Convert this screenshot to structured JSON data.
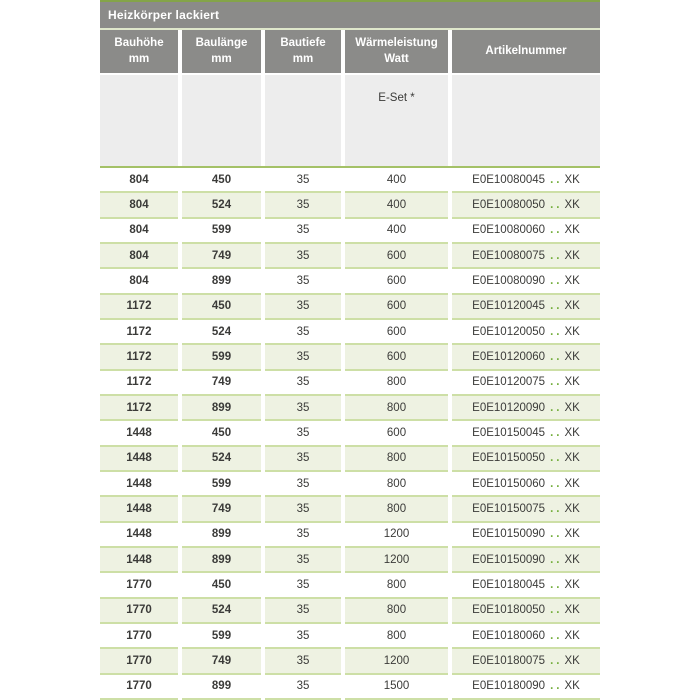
{
  "title": "Heizkörper lackiert",
  "table": {
    "columns": [
      {
        "label_line1": "Bauhöhe",
        "label_line2": "mm"
      },
      {
        "label_line1": "Baulänge",
        "label_line2": "mm"
      },
      {
        "label_line1": "Bautiefe",
        "label_line2": "mm"
      },
      {
        "label_line1": "Wärmeleistung",
        "label_line2": "Watt"
      },
      {
        "label_line1": "Artikelnummer",
        "label_line2": ""
      }
    ],
    "subheader": {
      "eset_label": "E-Set *"
    },
    "dots_label": "..",
    "rows": [
      {
        "height": "804",
        "length": "450",
        "depth": "35",
        "watt": "400",
        "article": "E0E10080045",
        "suffix": "XK"
      },
      {
        "height": "804",
        "length": "524",
        "depth": "35",
        "watt": "400",
        "article": "E0E10080050",
        "suffix": "XK"
      },
      {
        "height": "804",
        "length": "599",
        "depth": "35",
        "watt": "400",
        "article": "E0E10080060",
        "suffix": "XK"
      },
      {
        "height": "804",
        "length": "749",
        "depth": "35",
        "watt": "600",
        "article": "E0E10080075",
        "suffix": "XK"
      },
      {
        "height": "804",
        "length": "899",
        "depth": "35",
        "watt": "600",
        "article": "E0E10080090",
        "suffix": "XK"
      },
      {
        "height": "1172",
        "length": "450",
        "depth": "35",
        "watt": "600",
        "article": "E0E10120045",
        "suffix": "XK"
      },
      {
        "height": "1172",
        "length": "524",
        "depth": "35",
        "watt": "600",
        "article": "E0E10120050",
        "suffix": "XK"
      },
      {
        "height": "1172",
        "length": "599",
        "depth": "35",
        "watt": "600",
        "article": "E0E10120060",
        "suffix": "XK"
      },
      {
        "height": "1172",
        "length": "749",
        "depth": "35",
        "watt": "800",
        "article": "E0E10120075",
        "suffix": "XK"
      },
      {
        "height": "1172",
        "length": "899",
        "depth": "35",
        "watt": "800",
        "article": "E0E10120090",
        "suffix": "XK"
      },
      {
        "height": "1448",
        "length": "450",
        "depth": "35",
        "watt": "600",
        "article": "E0E10150045",
        "suffix": "XK"
      },
      {
        "height": "1448",
        "length": "524",
        "depth": "35",
        "watt": "800",
        "article": "E0E10150050",
        "suffix": "XK"
      },
      {
        "height": "1448",
        "length": "599",
        "depth": "35",
        "watt": "800",
        "article": "E0E10150060",
        "suffix": "XK"
      },
      {
        "height": "1448",
        "length": "749",
        "depth": "35",
        "watt": "800",
        "article": "E0E10150075",
        "suffix": "XK"
      },
      {
        "height": "1448",
        "length": "899",
        "depth": "35",
        "watt": "1200",
        "article": "E0E10150090",
        "suffix": "XK"
      },
      {
        "height": "1770",
        "length": "450",
        "depth": "35",
        "watt": "800",
        "article": "E0E10180045",
        "suffix": "XK"
      },
      {
        "height": "1770",
        "length": "524",
        "depth": "35",
        "watt": "800",
        "article": "E0E10180050",
        "suffix": "XK"
      },
      {
        "height": "1770",
        "length": "599",
        "depth": "35",
        "watt": "800",
        "article": "E0E10180060",
        "suffix": "XK"
      },
      {
        "height": "1770",
        "length": "749",
        "depth": "35",
        "watt": "1200",
        "article": "E0E10180075",
        "suffix": "XK"
      },
      {
        "height": "1770",
        "length": "899",
        "depth": "35",
        "watt": "1500",
        "article": "E0E10180090",
        "suffix": "XK"
      }
    ],
    "rows_extra_note": "",
    "rows_continued": [
      {
        "height": "1448",
        "length": "899",
        "depth": "35",
        "watt": "1200",
        "article": "E0E10150090",
        "suffix": "XK"
      }
    ]
  },
  "colors": {
    "header_gray": "#8b8b89",
    "title_text": "#ffffff",
    "subheader_gray": "#ededed",
    "row_alt_green": "#eef2e2",
    "row_border_green": "#cddfa6",
    "strong_line_green": "#a4c167",
    "top_line_green": "#84a449",
    "pale_sep": "#dfe7cb",
    "text_dark": "#3b3b39",
    "dot_green": "#74ae3d"
  }
}
